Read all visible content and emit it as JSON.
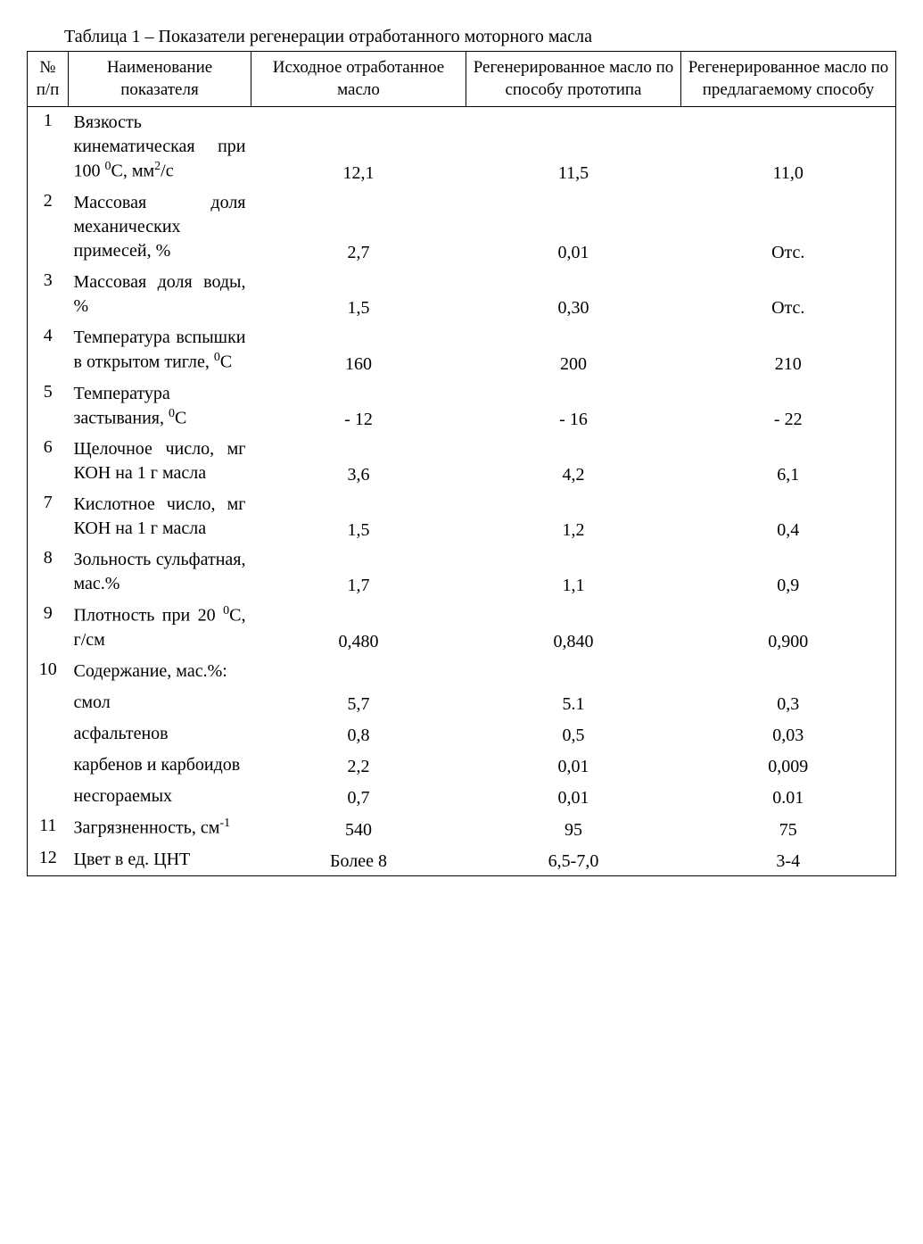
{
  "caption": "Таблица 1 – Показатели регенерации отработанного моторного масла",
  "headers": {
    "num": "№ п/п",
    "name": "Наименование показателя",
    "col1": "Исходное отработанное масло",
    "col2": "Регенерированное масло по способу прототипа",
    "col3": "Регенерированное масло по предлагаемому способу"
  },
  "rows": [
    {
      "n": "1",
      "name_html": "Вязкость кинематическая при 100 <sup>0</sup>С, мм<sup>2</sup>/с",
      "v1": "12,1",
      "v2": "11,5",
      "v3": "11,0"
    },
    {
      "n": "2",
      "name_html": "Массовая доля механических примесей, %",
      "v1": "2,7",
      "v2": "0,01",
      "v3": "Отс."
    },
    {
      "n": "3",
      "name_html": "Массовая доля воды, %",
      "v1": "1,5",
      "v2": "0,30",
      "v3": "Отс."
    },
    {
      "n": "4",
      "name_html": "Температура вспышки в открытом тигле, <sup>0</sup>С",
      "v1": "160",
      "v2": "200",
      "v3": "210"
    },
    {
      "n": "5",
      "name_html": "Температура застывания, <sup>0</sup>С",
      "v1": "- 12",
      "v2": "- 16",
      "v3": "- 22"
    },
    {
      "n": "6",
      "name_html": "Щелочное число, мг КОН на 1 г масла",
      "v1": "3,6",
      "v2": "4,2",
      "v3": "6,1"
    },
    {
      "n": "7",
      "name_html": "Кислотное число, мг КОН на 1 г масла",
      "v1": "1,5",
      "v2": "1,2",
      "v3": "0,4"
    },
    {
      "n": "8",
      "name_html": "Зольность сульфатная, мас.%",
      "v1": "1,7",
      "v2": "1,1",
      "v3": "0,9"
    },
    {
      "n": "9",
      "name_html": "Плотность при 20 <sup>0</sup>С, г/см",
      "v1": "0,480",
      "v2": "0,840",
      "v3": "0,900"
    },
    {
      "n": "10",
      "name_html": "Содержание, мас.%:",
      "v1": "",
      "v2": "",
      "v3": ""
    },
    {
      "n": "",
      "name_html": "смол",
      "v1": "5,7",
      "v2": "5.1",
      "v3": "0,3"
    },
    {
      "n": "",
      "name_html": "асфальтенов",
      "v1": "0,8",
      "v2": "0,5",
      "v3": "0,03"
    },
    {
      "n": "",
      "name_html": "карбенов и карбоидов",
      "v1": "2,2",
      "v2": "0,01",
      "v3": "0,009"
    },
    {
      "n": "",
      "name_html": "несгораемых",
      "v1": "0,7",
      "v2": "0,01",
      "v3": "0.01"
    },
    {
      "n": "11",
      "name_html": "Загрязненность, см<sup>-1</sup>",
      "v1": "540",
      "v2": "95",
      "v3": "75"
    },
    {
      "n": "12",
      "name_html": "Цвет в ед. ЦНТ",
      "v1": "Более 8",
      "v2": "6,5-7,0",
      "v3": "3-4"
    }
  ],
  "style": {
    "font_family": "Times New Roman",
    "font_size_pt": 15,
    "border_color": "#000000",
    "background_color": "#ffffff",
    "text_color": "#000000"
  }
}
